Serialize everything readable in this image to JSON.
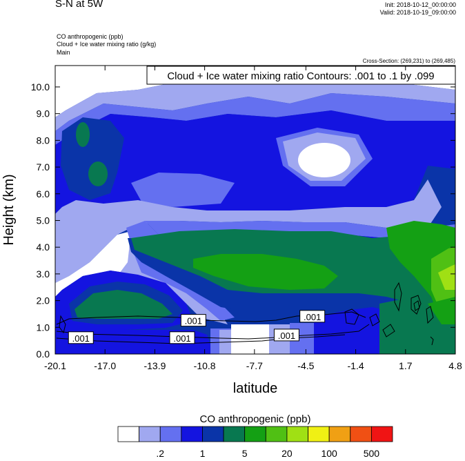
{
  "header": {
    "title": "S-N at 5W",
    "init": "Init: 2018-10-12_00:00:00",
    "valid": "Valid: 2018-10-19_09:00:00",
    "var1": "CO anthropogenic   (ppb)",
    "var2": "Cloud + Ice water mixing ratio   (g/kg)",
    "var3": "Main",
    "cross_section": "Cross-Section: (269,231) to (269,485)"
  },
  "chart_data": {
    "type": "filled-contour",
    "title": "CO anthropogenic  (ppb)",
    "overlay_title": "Cloud + Ice water mixing ratio Contours: .001 to .1 by .099",
    "xlabel": "latitude",
    "ylabel": "Height (km)",
    "xlim": [
      -20.1,
      4.8
    ],
    "ylim": [
      0.0,
      10.8
    ],
    "x_ticks": [
      "-20.1",
      "-17.0",
      "-13.9",
      "-10.8",
      "-7.7",
      "-4.5",
      "-1.4",
      "1.7",
      "4.8"
    ],
    "x_tick_values": [
      -20.1,
      -17.0,
      -13.9,
      -10.8,
      -7.7,
      -4.5,
      -1.4,
      1.7,
      4.8
    ],
    "y_ticks": [
      "0.0",
      "1.0",
      "2.0",
      "3.0",
      "4.0",
      "5.0",
      "6.0",
      "7.0",
      "8.0",
      "9.0",
      "10.0"
    ],
    "y_tick_values": [
      0,
      1,
      2,
      3,
      4,
      5,
      6,
      7,
      8,
      9,
      10
    ],
    "contour_labels": [
      {
        "text": ".001",
        "lat": -18.5,
        "z": 0.6
      },
      {
        "text": ".001",
        "lat": -12.2,
        "z": 0.6
      },
      {
        "text": ".001",
        "lat": -11.5,
        "z": 1.25
      },
      {
        "text": ".001",
        "lat": -5.7,
        "z": 0.7
      },
      {
        "text": ".001",
        "lat": -4.1,
        "z": 1.4
      }
    ],
    "colorbar": {
      "colors": [
        "#ffffff",
        "#a0a8f0",
        "#6470f0",
        "#1414e0",
        "#0a34a8",
        "#087850",
        "#14a014",
        "#50c014",
        "#a0e014",
        "#f0f014",
        "#f0a014",
        "#f05014",
        "#f01414"
      ],
      "labels": [
        ".2",
        "1",
        "5",
        "20",
        "100",
        "500"
      ],
      "label_after_box": [
        1,
        3,
        5,
        7,
        9,
        11
      ]
    }
  }
}
